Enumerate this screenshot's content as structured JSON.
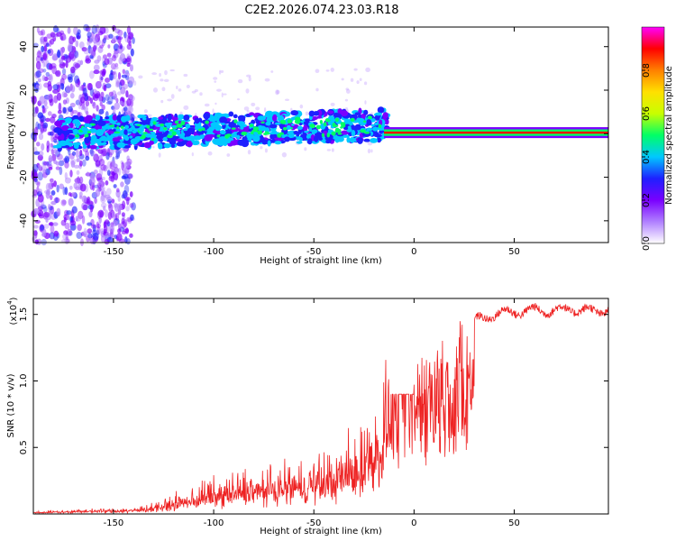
{
  "title": "C2E2.2026.074.23.03.R18",
  "chart_data": [
    {
      "type": "heatmap",
      "xlabel": "Height of straight line (km)",
      "ylabel": "Frequency (Hz)",
      "xlim": [
        -190,
        97
      ],
      "ylim": [
        -50,
        49
      ],
      "xticks": [
        -150,
        -100,
        -50,
        0,
        50
      ],
      "yticks": [
        -40,
        -20,
        0,
        20,
        40
      ],
      "colorbar": {
        "label": "Normalized spectral amplitude",
        "range": [
          0.0,
          1.0
        ],
        "ticks": [
          0.0,
          0.2,
          0.4,
          0.6,
          0.8
        ],
        "tick_labels": [
          "0.0",
          "0.2",
          "0.4",
          "0.6",
          "0.8"
        ],
        "colors": [
          "#ffffff",
          "#b080ff",
          "#7a00ff",
          "#1e20ff",
          "#00c8ff",
          "#00ff66",
          "#c8ff00",
          "#ffe000",
          "#ff8000",
          "#ff0000",
          "#ff00ff"
        ]
      },
      "features": [
        {
          "region_x": [
            -190,
            -140
          ],
          "description_value": "scattered low amplitude noise",
          "amplitude": 0.1
        },
        {
          "region_x": [
            -175,
            -15
          ],
          "freq_center": 0,
          "amplitude": 0.35
        },
        {
          "region_x": [
            -15,
            97
          ],
          "freq_center": 0.5,
          "amplitude": 1.0
        }
      ]
    },
    {
      "type": "line",
      "xlabel": "Height of straight line (km)",
      "ylabel": "SNR (10 * v/v)",
      "scale_label": "(x10",
      "scale_exp": "4",
      "xlim": [
        -190,
        97
      ],
      "ylim": [
        0,
        1.62
      ],
      "xticks": [
        -150,
        -100,
        -50,
        0,
        50
      ],
      "yticks": [
        0.5,
        1.0,
        1.5
      ],
      "ytick_labels": [
        "0.5",
        "1.0",
        "1.5"
      ],
      "color": "#ee2222",
      "envelope": {
        "x": [
          -190,
          -160,
          -140,
          -130,
          -120,
          -110,
          -100,
          -90,
          -80,
          -70,
          -60,
          -50,
          -40,
          -30,
          -25,
          -20,
          -15,
          -12,
          -10,
          0,
          10,
          15,
          20,
          25,
          30,
          40,
          50,
          60,
          70,
          80,
          90,
          97
        ],
        "base": [
          0.01,
          0.02,
          0.02,
          0.03,
          0.05,
          0.08,
          0.1,
          0.12,
          0.13,
          0.14,
          0.15,
          0.17,
          0.2,
          0.25,
          0.3,
          0.4,
          0.5,
          0.7,
          0.9,
          1.0,
          1.1,
          1.15,
          1.25,
          1.35,
          1.45,
          1.5,
          1.52,
          1.53,
          1.53,
          1.54,
          1.52,
          1.54
        ],
        "amp": [
          0.01,
          0.02,
          0.03,
          0.06,
          0.1,
          0.15,
          0.18,
          0.2,
          0.22,
          0.22,
          0.25,
          0.28,
          0.3,
          0.4,
          0.45,
          0.5,
          0.6,
          0.8,
          0.6,
          0.35,
          0.3,
          0.3,
          0.25,
          0.2,
          0.12,
          0.05,
          0.04,
          0.04,
          0.04,
          0.04,
          0.04,
          0.04
        ]
      }
    }
  ]
}
